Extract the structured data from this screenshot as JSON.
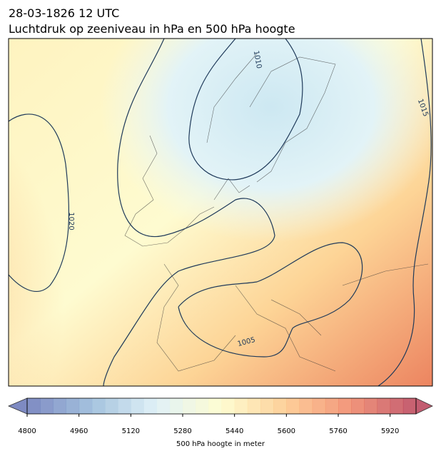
{
  "title": "28-03-1826 12 UTC",
  "subtitle": "Luchtdruk op zeeniveau in hPa en 500 hPa hoogte",
  "contour_labels": [
    "1010",
    "1015",
    "1020",
    "1005"
  ],
  "colorbar": {
    "label": "500 hPa hoogte in meter",
    "lim": [
      4800,
      6000
    ],
    "step": 40,
    "ticks": [
      4800,
      4960,
      5120,
      5280,
      5440,
      5600,
      5760,
      5920
    ],
    "colormap": [
      "#5e6db3",
      "#8fb4d6",
      "#d9eef5",
      "#fefcc6",
      "#fdc380",
      "#ee7b5a",
      "#b4344d"
    ]
  }
}
